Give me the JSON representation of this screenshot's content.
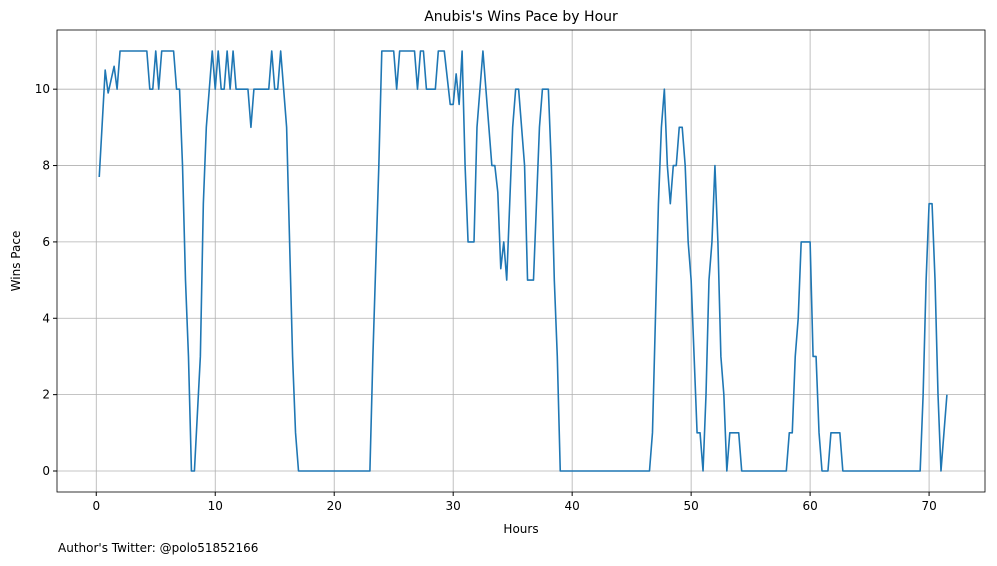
{
  "chart_data": {
    "type": "line",
    "title": "Anubis's Wins Pace by Hour",
    "xlabel": "Hours",
    "ylabel": "Wins Pace",
    "annotation": "Author's Twitter: @polo51852166",
    "color": "#1f77b4",
    "grid": true,
    "xlim": [
      -3.3,
      74.7
    ],
    "xticks": [
      0,
      10,
      20,
      30,
      40,
      50,
      60,
      70
    ],
    "ylim": [
      -0.55,
      11.55
    ],
    "yticks": [
      0,
      2,
      4,
      6,
      8,
      10
    ],
    "x": [
      0.25,
      0.75,
      1.0,
      1.5,
      1.75,
      2.0,
      4.25,
      4.5,
      4.75,
      5.0,
      5.25,
      5.5,
      6.5,
      6.75,
      7.0,
      7.25,
      7.5,
      7.75,
      8.0,
      8.25,
      8.75,
      9.0,
      9.25,
      9.5,
      9.75,
      10.0,
      10.25,
      10.5,
      10.75,
      11.0,
      11.25,
      11.5,
      11.75,
      12.75,
      13.0,
      13.25,
      14.5,
      14.75,
      15.0,
      15.25,
      15.5,
      15.75,
      16.0,
      16.25,
      16.5,
      16.75,
      17.0,
      23.0,
      23.25,
      23.75,
      24.0,
      25.0,
      25.25,
      25.5,
      26.75,
      27.0,
      27.25,
      27.5,
      27.75,
      28.5,
      28.75,
      29.25,
      29.5,
      29.75,
      30.0,
      30.25,
      30.5,
      30.75,
      31.0,
      31.25,
      31.75,
      32.0,
      32.5,
      32.75,
      33.0,
      33.25,
      33.5,
      33.75,
      34.0,
      34.25,
      34.5,
      34.75,
      35.0,
      35.25,
      35.5,
      35.75,
      36.0,
      36.25,
      36.75,
      37.0,
      37.25,
      37.5,
      38.0,
      38.25,
      38.5,
      38.75,
      39.0,
      46.5,
      46.75,
      47.0,
      47.25,
      47.5,
      47.75,
      48.0,
      48.25,
      48.5,
      48.75,
      49.0,
      49.25,
      49.5,
      49.75,
      50.0,
      50.25,
      50.5,
      50.75,
      51.0,
      51.25,
      51.5,
      51.75,
      52.0,
      52.25,
      52.5,
      52.75,
      53.0,
      53.25,
      54.0,
      54.25,
      58.0,
      58.25,
      58.5,
      58.75,
      59.0,
      59.25,
      60.0,
      60.25,
      60.5,
      60.75,
      61.0,
      61.5,
      61.75,
      62.5,
      62.75,
      69.25,
      69.5,
      69.75,
      70.0,
      70.25,
      70.5,
      70.75,
      71.0,
      71.25,
      71.5
    ],
    "values": [
      7.7,
      10.5,
      9.9,
      10.6,
      10,
      11,
      11,
      10,
      10,
      11,
      10,
      11,
      11,
      10,
      10,
      8,
      5,
      3,
      0,
      0,
      3,
      7,
      9,
      10,
      11,
      10,
      11,
      10,
      10,
      11,
      10,
      11,
      10,
      10,
      9,
      10,
      10,
      11,
      10,
      10,
      11,
      10,
      9,
      6,
      3,
      1,
      0,
      0,
      3,
      8,
      11,
      11,
      10,
      11,
      11,
      10,
      11,
      11,
      10,
      10,
      11,
      11,
      10.3,
      9.6,
      9.6,
      10.4,
      9.6,
      11,
      8,
      6,
      6,
      9,
      11,
      10,
      9,
      8,
      8,
      7.3,
      5.3,
      6,
      5,
      7,
      9,
      10,
      10,
      9,
      8,
      5,
      5,
      7,
      9,
      10,
      10,
      8,
      5,
      3,
      0,
      0,
      1,
      4,
      7,
      9,
      10,
      8,
      7,
      8,
      8,
      9,
      9,
      8,
      6,
      5,
      3,
      1,
      1,
      0,
      2,
      5,
      6,
      8,
      6,
      3,
      2,
      0,
      1,
      1,
      0,
      0,
      1,
      1,
      3,
      4,
      6,
      6,
      3,
      3,
      1,
      0,
      0,
      1,
      1,
      0,
      0,
      2,
      5,
      7,
      7,
      5,
      2,
      0,
      1,
      2
    ]
  }
}
